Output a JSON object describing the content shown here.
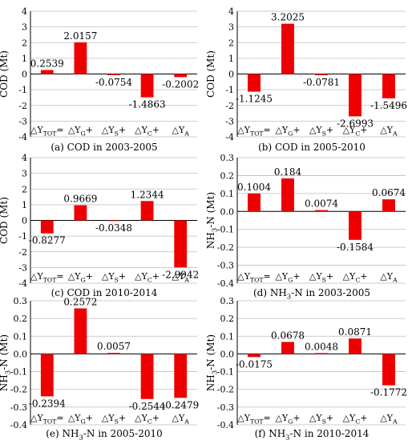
{
  "colors": {
    "bar": "#ee0000",
    "axis": "#000000",
    "grid": "#bdbdbd",
    "text": "#000000"
  },
  "chart_data": [
    {
      "type": "bar",
      "panel": "a",
      "caption": "(a) COD in 2003-2005",
      "ylabel_parts": [
        {
          "t": "COD (Mt)"
        }
      ],
      "ylim": [
        -4,
        4
      ],
      "ystep": 1,
      "grid": true,
      "categories": [
        [
          {
            "t": "△Y"
          },
          {
            "t": "TOT",
            "s": "sub"
          },
          {
            "t": "="
          }
        ],
        [
          {
            "t": "△Y"
          },
          {
            "t": "G",
            "s": "sub"
          },
          {
            "t": "+"
          }
        ],
        [
          {
            "t": "△Y"
          },
          {
            "t": "S",
            "s": "sub"
          },
          {
            "t": "+"
          }
        ],
        [
          {
            "t": "△Y"
          },
          {
            "t": "C",
            "s": "sub"
          },
          {
            "t": "+"
          }
        ],
        [
          {
            "t": "△Y"
          },
          {
            "t": "A",
            "s": "sub"
          }
        ]
      ],
      "values": [
        0.2539,
        2.0157,
        -0.0754,
        -1.4863,
        -0.2002
      ],
      "data_labels": [
        "0.2539",
        "2.0157",
        "-0.0754",
        "-1.4863",
        "-0.2002"
      ]
    },
    {
      "type": "bar",
      "panel": "b",
      "caption": "(b) COD in 2005-2010",
      "ylabel_parts": [
        {
          "t": "COD (Mt)"
        }
      ],
      "ylim": [
        -4,
        4
      ],
      "ystep": 1,
      "grid": true,
      "categories": [
        [
          {
            "t": "△Y"
          },
          {
            "t": "TOT",
            "s": "sub"
          },
          {
            "t": "="
          }
        ],
        [
          {
            "t": "△Y"
          },
          {
            "t": "G",
            "s": "sub"
          },
          {
            "t": "+"
          }
        ],
        [
          {
            "t": "△Y"
          },
          {
            "t": "S",
            "s": "sub"
          },
          {
            "t": "+"
          }
        ],
        [
          {
            "t": "△Y"
          },
          {
            "t": "C",
            "s": "sub"
          },
          {
            "t": "+"
          }
        ],
        [
          {
            "t": "△Y"
          },
          {
            "t": "A",
            "s": "sub"
          }
        ]
      ],
      "values": [
        -1.1245,
        3.2025,
        -0.0781,
        -2.6993,
        -1.5496
      ],
      "data_labels": [
        "-1.1245",
        "3.2025",
        "-0.0781",
        "-2.6993",
        "-1.5496"
      ]
    },
    {
      "type": "bar",
      "panel": "c",
      "caption": "(c) COD in 2010-2014",
      "ylabel_parts": [
        {
          "t": "COD (Mt)"
        }
      ],
      "ylim": [
        -4,
        4
      ],
      "ystep": 1,
      "grid": true,
      "categories": [
        [
          {
            "t": "△Y"
          },
          {
            "t": "TOT",
            "s": "sub"
          },
          {
            "t": "="
          }
        ],
        [
          {
            "t": "△Y"
          },
          {
            "t": "G",
            "s": "sub"
          },
          {
            "t": "+"
          }
        ],
        [
          {
            "t": "△Y"
          },
          {
            "t": "S",
            "s": "sub"
          },
          {
            "t": "+"
          }
        ],
        [
          {
            "t": "△Y"
          },
          {
            "t": "C",
            "s": "sub"
          },
          {
            "t": "+"
          }
        ],
        [
          {
            "t": "△Y"
          },
          {
            "t": "A",
            "s": "sub"
          }
        ]
      ],
      "values": [
        -0.8277,
        0.9669,
        -0.0348,
        1.2344,
        -2.9942
      ],
      "data_labels": [
        "-0.8277",
        "0.9669",
        "-0.0348",
        "1.2344",
        "-2.9942"
      ]
    },
    {
      "type": "bar",
      "panel": "d",
      "caption_parts": [
        {
          "t": "(d) NH"
        },
        {
          "t": "3",
          "s": "sub"
        },
        {
          "t": "-N in 2003-2005"
        }
      ],
      "ylabel_parts": [
        {
          "t": "NH"
        },
        {
          "t": "3",
          "s": "sub"
        },
        {
          "t": "-N (Mt)"
        }
      ],
      "ylim": [
        -0.4,
        0.3
      ],
      "ystep": 0.1,
      "grid": true,
      "categories": [
        [
          {
            "t": "△Y"
          },
          {
            "t": "TOT",
            "s": "sub"
          },
          {
            "t": "="
          }
        ],
        [
          {
            "t": "△Y"
          },
          {
            "t": "G",
            "s": "sub"
          },
          {
            "t": "+"
          }
        ],
        [
          {
            "t": "△Y"
          },
          {
            "t": "S",
            "s": "sub"
          },
          {
            "t": "+"
          }
        ],
        [
          {
            "t": "△Y"
          },
          {
            "t": "C",
            "s": "sub"
          },
          {
            "t": "+"
          }
        ],
        [
          {
            "t": "△Y"
          },
          {
            "t": "A",
            "s": "sub"
          }
        ]
      ],
      "values": [
        0.1004,
        0.184,
        0.0074,
        -0.1584,
        0.0674
      ],
      "data_labels": [
        "0.1004",
        "0.184",
        "0.0074",
        "-0.1584",
        "0.0674"
      ]
    },
    {
      "type": "bar",
      "panel": "e",
      "caption_parts": [
        {
          "t": "(e) NH"
        },
        {
          "t": "3",
          "s": "sub"
        },
        {
          "t": "-N in 2005-2010"
        }
      ],
      "ylabel_parts": [
        {
          "t": "NH"
        },
        {
          "t": "3",
          "s": "sub"
        },
        {
          "t": "-N (Mt)"
        }
      ],
      "ylim": [
        -0.4,
        0.3
      ],
      "ystep": 0.1,
      "grid": true,
      "categories": [
        [
          {
            "t": "△Y"
          },
          {
            "t": "TOT",
            "s": "sub"
          },
          {
            "t": "="
          }
        ],
        [
          {
            "t": "△Y"
          },
          {
            "t": "G",
            "s": "sub"
          },
          {
            "t": "+"
          }
        ],
        [
          {
            "t": "△Y"
          },
          {
            "t": "S",
            "s": "sub"
          },
          {
            "t": "+"
          }
        ],
        [
          {
            "t": "△Y"
          },
          {
            "t": "C",
            "s": "sub"
          },
          {
            "t": "+"
          }
        ],
        [
          {
            "t": "△Y"
          },
          {
            "t": "A",
            "s": "sub"
          }
        ]
      ],
      "values": [
        -0.2394,
        0.2572,
        0.0057,
        -0.2544,
        -0.2479
      ],
      "data_labels": [
        "-0.2394",
        "0.2572",
        "0.0057",
        "-0.2544",
        "-0.2479"
      ]
    },
    {
      "type": "bar",
      "panel": "f",
      "caption_parts": [
        {
          "t": "(f) NH"
        },
        {
          "t": "3",
          "s": "sub"
        },
        {
          "t": "-N in 2010-2014"
        }
      ],
      "ylabel_parts": [
        {
          "t": "NH"
        },
        {
          "t": "3",
          "s": "sub"
        },
        {
          "t": "-N (Mt)"
        }
      ],
      "ylim": [
        -0.4,
        0.3
      ],
      "ystep": 0.1,
      "grid": true,
      "categories": [
        [
          {
            "t": "△Y"
          },
          {
            "t": "TOT",
            "s": "sub"
          },
          {
            "t": "="
          }
        ],
        [
          {
            "t": "△Y"
          },
          {
            "t": "G",
            "s": "sub"
          },
          {
            "t": "+"
          }
        ],
        [
          {
            "t": "△Y"
          },
          {
            "t": "S",
            "s": "sub"
          },
          {
            "t": "+"
          }
        ],
        [
          {
            "t": "△Y"
          },
          {
            "t": "C",
            "s": "sub"
          },
          {
            "t": "+"
          }
        ],
        [
          {
            "t": "△Y"
          },
          {
            "t": "A",
            "s": "sub"
          }
        ]
      ],
      "values": [
        -0.0175,
        0.0678,
        0.0048,
        0.0871,
        -0.1772
      ],
      "data_labels": [
        "-0.0175",
        "0.0678",
        "0.0048",
        "0.0871",
        "-0.1772"
      ]
    }
  ]
}
